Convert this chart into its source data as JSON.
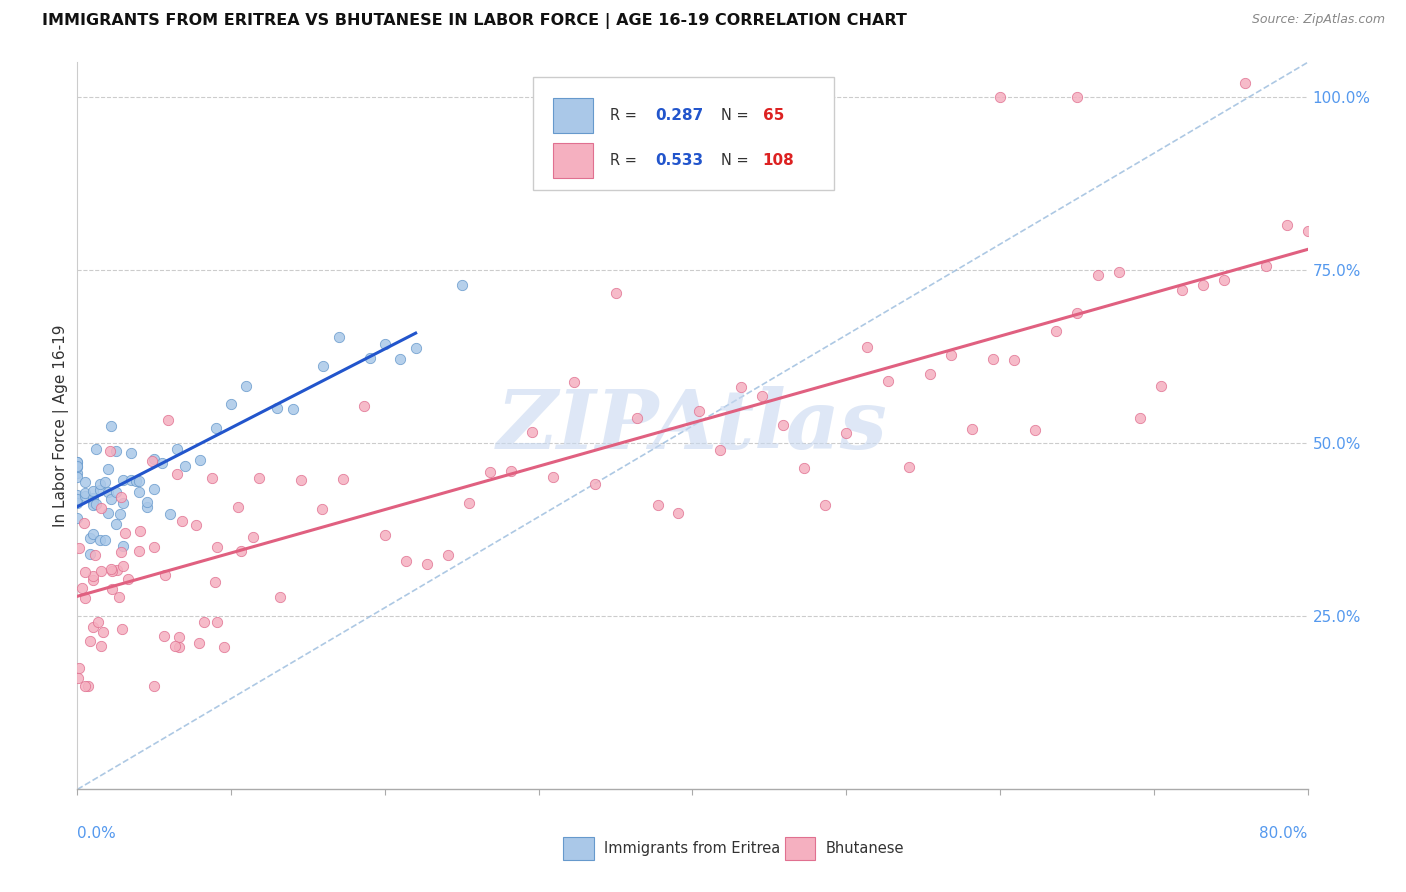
{
  "title": "IMMIGRANTS FROM ERITREA VS BHUTANESE IN LABOR FORCE | AGE 16-19 CORRELATION CHART",
  "source": "Source: ZipAtlas.com",
  "ylabel": "In Labor Force | Age 16-19",
  "xmin": 0.0,
  "xmax": 0.8,
  "ymin": 0.0,
  "ymax": 1.05,
  "right_yticks": [
    0.25,
    0.5,
    0.75,
    1.0
  ],
  "right_yticklabels": [
    "25.0%",
    "50.0%",
    "75.0%",
    "100.0%"
  ],
  "eritrea_color": "#aac8e8",
  "eritrea_edge": "#6699cc",
  "bhutanese_color": "#f5b0c0",
  "bhutanese_edge": "#e07090",
  "eritrea_line_color": "#2255cc",
  "bhutanese_line_color": "#e06080",
  "R_eritrea": 0.287,
  "N_eritrea": 65,
  "R_bhutanese": 0.533,
  "N_bhutanese": 108,
  "legend_R_color": "#2255cc",
  "legend_N_color": "#dd2222",
  "watermark": "ZIPAtlas",
  "watermark_color": "#c8d8f0",
  "diag_color": "#99bbdd"
}
